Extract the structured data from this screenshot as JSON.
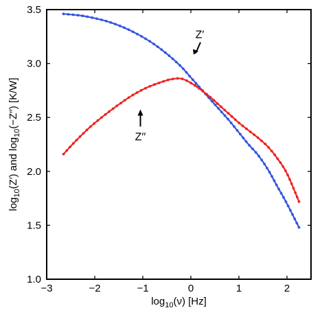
{
  "chart_data": {
    "type": "line",
    "title": "",
    "xlabel": {
      "base": "log",
      "sub": "10",
      "rest": "(ν) [Hz]"
    },
    "ylabel": {
      "p1": "log",
      "s1": "10",
      "p2": "(Z′) and log",
      "s2": "10",
      "p3": "(−Z′′) [K/W]"
    },
    "xlim": [
      -3,
      2.5
    ],
    "ylim": [
      1.0,
      3.5
    ],
    "xticks": [
      -3,
      -2,
      -1,
      0,
      1,
      2
    ],
    "xtick_labels": [
      "−3",
      "−2",
      "−1",
      "0",
      "1",
      "2"
    ],
    "yticks": [
      1.0,
      1.5,
      2.0,
      2.5,
      3.0,
      3.5
    ],
    "ytick_labels": [
      "1.0",
      "1.5",
      "2.0",
      "2.5",
      "3.0",
      "3.5"
    ],
    "grid": false,
    "series": [
      {
        "color": "#3355dd",
        "x": [
          -2.65,
          -2.3,
          -2.0,
          -1.7,
          -1.4,
          -1.1,
          -0.8,
          -0.5,
          -0.2,
          0.0,
          0.2,
          0.4,
          0.6,
          0.8,
          1.0,
          1.2,
          1.4,
          1.6,
          1.8,
          2.0,
          2.25
        ],
        "y": [
          3.46,
          3.445,
          3.42,
          3.385,
          3.335,
          3.27,
          3.19,
          3.09,
          2.97,
          2.87,
          2.77,
          2.67,
          2.57,
          2.47,
          2.36,
          2.25,
          2.15,
          2.02,
          1.86,
          1.7,
          1.48
        ]
      },
      {
        "color": "#ee2222",
        "x": [
          -2.65,
          -2.4,
          -2.1,
          -1.8,
          -1.5,
          -1.2,
          -0.9,
          -0.6,
          -0.4,
          -0.2,
          0.0,
          0.2,
          0.4,
          0.6,
          0.8,
          1.0,
          1.2,
          1.4,
          1.6,
          1.8,
          2.0,
          2.25
        ],
        "y": [
          2.16,
          2.28,
          2.41,
          2.52,
          2.62,
          2.71,
          2.78,
          2.83,
          2.855,
          2.86,
          2.82,
          2.76,
          2.69,
          2.61,
          2.53,
          2.45,
          2.38,
          2.31,
          2.23,
          2.12,
          1.98,
          1.72
        ]
      }
    ],
    "annotations": [
      {
        "label": "Z′",
        "x": 0.1,
        "y": 3.07
      },
      {
        "label": "Z′′",
        "x": -1.05,
        "y": 2.53
      }
    ]
  }
}
